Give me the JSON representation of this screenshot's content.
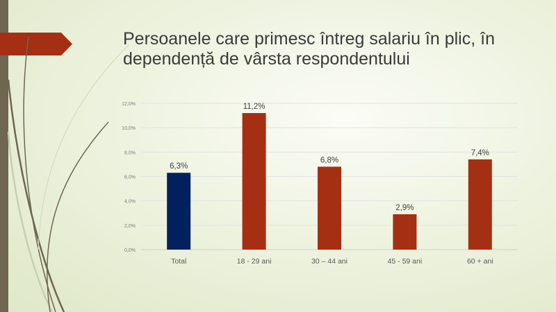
{
  "slide": {
    "title": "Persoanele care primesc întreg salariu în plic, în dependență de vârsta respondentului"
  },
  "colors": {
    "total": "#00215c",
    "group": "#a52f12",
    "sidebar": "#6e6650"
  },
  "chart_data": {
    "type": "bar",
    "title": "",
    "xlabel": "",
    "ylabel": "",
    "categories": [
      "Total",
      "18 - 29 ani",
      "30 – 44 ani",
      "45 - 59 ani",
      "60 + ani"
    ],
    "values": [
      6.3,
      11.2,
      6.8,
      2.9,
      7.4
    ],
    "data_labels": [
      "6,3%",
      "11,2%",
      "6,8%",
      "2,9%",
      "7,4%"
    ],
    "ylim": [
      0,
      12
    ],
    "yticks": [
      0,
      2,
      4,
      6,
      8,
      10,
      12
    ],
    "ytick_labels": [
      "0,0%",
      "2,0%",
      "4,0%",
      "6,0%",
      "8,0%",
      "10,0%",
      "12,0%"
    ],
    "grid": true,
    "legend": "none"
  }
}
